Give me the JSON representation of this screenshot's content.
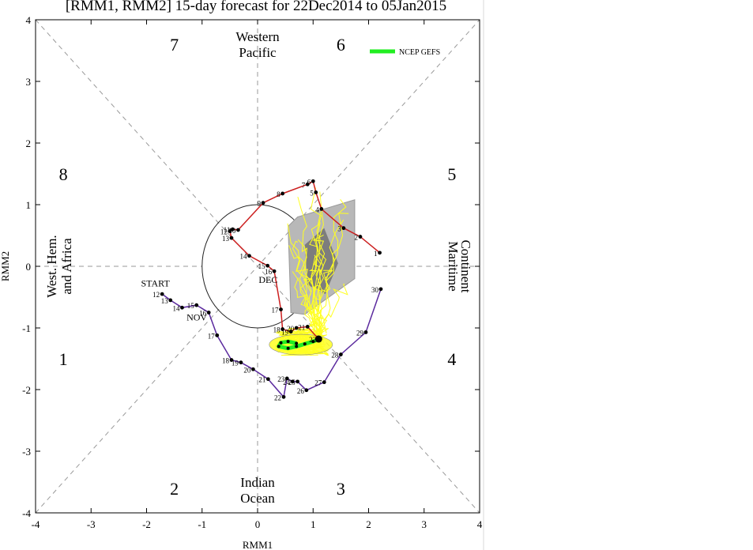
{
  "title": "[RMM1, RMM2] 15-day forecast for 22Dec2014 to 05Jan2015",
  "legend": {
    "label": "NCEP GEFS",
    "color": "#22ee22"
  },
  "regions": {
    "top": [
      "Western",
      "Pacific"
    ],
    "bottom": [
      "Indian",
      "Ocean"
    ],
    "left": [
      "West. Hem.",
      "and Africa"
    ],
    "right": [
      "Maritime",
      "Continent"
    ]
  },
  "phases": [
    "1",
    "2",
    "3",
    "4",
    "5",
    "6",
    "7",
    "8"
  ],
  "labels": {
    "start": "START",
    "nov": "NOV",
    "dec": "DEC"
  },
  "colors": {
    "nov": "#5b2a9e",
    "dec": "#cc1f1f",
    "spread": "#ffff22",
    "shade_light": "#b8b8b8",
    "shade_dark": "#7d7d7d",
    "mean": "#22ee22"
  },
  "chart_data": {
    "type": "line",
    "title": "[RMM1, RMM2] 15-day forecast for 22Dec2014 to 05Jan2015",
    "xlabel": "RMM1",
    "ylabel": "RMM2",
    "xlim": [
      -4,
      4
    ],
    "ylim": [
      -4,
      4
    ],
    "xticks": [
      "-4",
      "-3",
      "-2",
      "-1",
      "0",
      "1",
      "2",
      "3",
      "4"
    ],
    "yticks": [
      "-4",
      "-3",
      "-2",
      "-1",
      "0",
      "1",
      "2",
      "3",
      "4"
    ],
    "unit_circle_radius": 1,
    "series": [
      {
        "name": "NOV",
        "color": "#5b2a9e",
        "days": [
          "12",
          "13",
          "14",
          "15",
          "16",
          "17",
          "18",
          "19",
          "20",
          "21",
          "22",
          "23",
          "24",
          "25",
          "26",
          "27",
          "28",
          "29",
          "30"
        ],
        "x": [
          -1.72,
          -1.57,
          -1.36,
          -1.1,
          -0.88,
          -0.73,
          -0.47,
          -0.3,
          -0.08,
          0.19,
          0.47,
          0.53,
          0.63,
          0.72,
          0.88,
          1.2,
          1.5,
          1.95,
          2.22
        ],
        "y": [
          -0.45,
          -0.55,
          -0.67,
          -0.63,
          -0.75,
          -1.12,
          -1.52,
          -1.56,
          -1.67,
          -1.83,
          -2.12,
          -1.82,
          -1.87,
          -1.87,
          -2.01,
          -1.88,
          -1.43,
          -1.07,
          -0.37
        ]
      },
      {
        "name": "DEC",
        "color": "#cc1f1f",
        "days": [
          "1",
          "2",
          "3",
          "4",
          "5",
          "6",
          "7",
          "8",
          "9",
          "10",
          "11",
          "12",
          "13",
          "14",
          "15",
          "16",
          "17",
          "18",
          "19",
          "20",
          "21",
          "22"
        ],
        "x": [
          2.2,
          1.85,
          1.55,
          1.15,
          1.05,
          1.0,
          0.9,
          0.45,
          0.1,
          -0.35,
          -0.45,
          -0.5,
          -0.47,
          -0.15,
          0.18,
          0.3,
          0.42,
          0.45,
          0.6,
          0.7,
          0.9,
          1.1
        ],
        "y": [
          0.22,
          0.48,
          0.62,
          0.93,
          1.2,
          1.38,
          1.33,
          1.18,
          1.03,
          0.59,
          0.6,
          0.57,
          0.46,
          0.17,
          0.01,
          -0.08,
          -0.7,
          -1.02,
          -1.06,
          -1.0,
          -0.98,
          -1.18
        ]
      }
    ],
    "ensemble_mean": {
      "name": "NCEP GEFS",
      "x": [
        1.1,
        1.0,
        0.85,
        0.7,
        0.55,
        0.38,
        0.42,
        0.55,
        0.7
      ],
      "y": [
        -1.18,
        -1.22,
        -1.26,
        -1.3,
        -1.33,
        -1.3,
        -1.24,
        -1.22,
        -1.25
      ]
    }
  }
}
